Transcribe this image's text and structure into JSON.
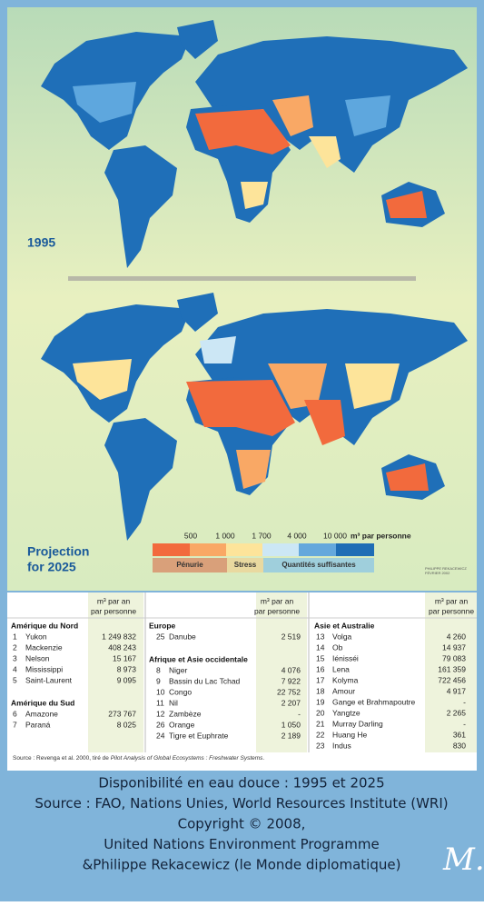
{
  "maps": [
    {
      "label": [
        "1995"
      ]
    },
    {
      "label": [
        "Projection",
        "for 2025"
      ]
    }
  ],
  "legend": {
    "thresholds": [
      "500",
      "1 000",
      "1 700",
      "4 000",
      "10 000"
    ],
    "unit": "m³ par personne",
    "classes": [
      "Pénurie",
      "Stress",
      "Quantités suffisantes"
    ],
    "credit": [
      "PHILIPPE REKACEWICZ",
      "FÉVRIER 2002"
    ]
  },
  "table": {
    "columns": [
      {
        "header": [
          "m³ par an",
          "par personne"
        ],
        "groups": [
          {
            "title": "Amérique du Nord",
            "rows": [
              [
                "1",
                "Yukon",
                "1 249 832"
              ],
              [
                "2",
                "Mackenzie",
                "408 243"
              ],
              [
                "3",
                "Nelson",
                "15 167"
              ],
              [
                "4",
                "Mississippi",
                "8 973"
              ],
              [
                "5",
                "Saint-Laurent",
                "9 095"
              ]
            ]
          },
          {
            "title": "Amérique du Sud",
            "rows": [
              [
                "6",
                "Amazone",
                "273 767"
              ],
              [
                "7",
                "Paraná",
                "8 025"
              ]
            ]
          }
        ]
      },
      {
        "header": [
          "m³ par an",
          "par personne"
        ],
        "groups": [
          {
            "title": "Europe",
            "rows": [
              [
                "25",
                "Danube",
                "2 519"
              ]
            ]
          },
          {
            "title": "Afrique et Asie occidentale",
            "rows": [
              [
                "8",
                "Niger",
                "4 076"
              ],
              [
                "9",
                "Bassin du Lac Tchad",
                "7 922"
              ],
              [
                "10",
                "Congo",
                "22 752"
              ],
              [
                "11",
                "Nil",
                "2 207"
              ],
              [
                "12",
                "Zambèze",
                "-"
              ],
              [
                "26",
                "Orange",
                "1 050"
              ],
              [
                "24",
                "Tigre et Euphrate",
                "2 189"
              ]
            ]
          }
        ]
      },
      {
        "header": [
          "m³ par an",
          "par personne"
        ],
        "groups": [
          {
            "title": "Asie et Australie",
            "rows": [
              [
                "13",
                "Volga",
                "4 260"
              ],
              [
                "14",
                "Ob",
                "14 937"
              ],
              [
                "15",
                "Iénisséi",
                "79 083"
              ],
              [
                "16",
                "Lena",
                "161 359"
              ],
              [
                "17",
                "Kolyma",
                "722 456"
              ],
              [
                "18",
                "Amour",
                "4 917"
              ],
              [
                "19",
                "Gange et Brahmapoutre",
                "-"
              ],
              [
                "20",
                "Yangtze",
                "2 265"
              ],
              [
                "21",
                "Murray Darling",
                "-"
              ],
              [
                "22",
                "Huang He",
                "361"
              ],
              [
                "23",
                "Indus",
                "830"
              ]
            ]
          }
        ]
      }
    ],
    "source": [
      "Source : Revenga et al. 2000, tiré de ",
      "Pilot Analysis of Global Ecosystems : Freshwater Systems",
      "."
    ]
  },
  "caption": [
    "Disponibilité en eau douce : 1995 et 2025",
    "Source : FAO, Nations Unies, World Resources Institute (WRI)",
    "Copyright © 2008,",
    "United Nations Environment Programme",
    "&Philippe Rekacewicz (le Monde diplomatique)"
  ],
  "logo": "M."
}
